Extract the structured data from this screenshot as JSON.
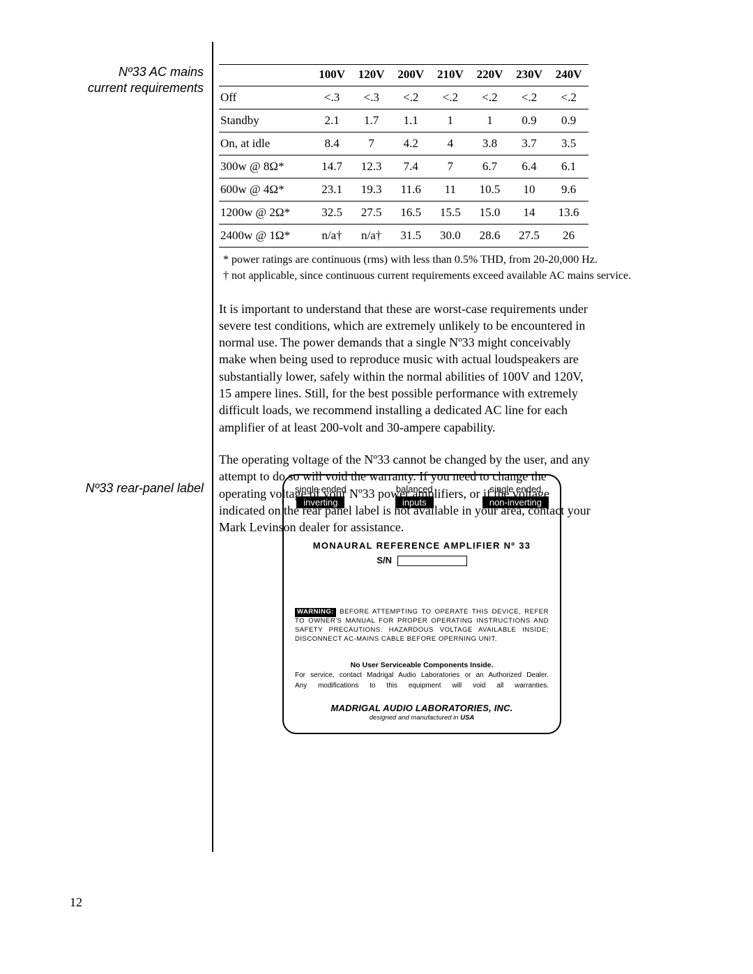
{
  "side": {
    "ac_mains": "Nº33 AC mains\ncurrent requirements",
    "rear_panel": "Nº33 rear-panel label"
  },
  "table": {
    "columns": [
      "100V",
      "120V",
      "200V",
      "210V",
      "220V",
      "230V",
      "240V"
    ],
    "rows": [
      {
        "label": "Off",
        "cells": [
          "<.3",
          "<.3",
          "<.2",
          "<.2",
          "<.2",
          "<.2",
          "<.2"
        ]
      },
      {
        "label": "Standby",
        "cells": [
          "2.1",
          "1.7",
          "1.1",
          "1",
          "1",
          "0.9",
          "0.9"
        ]
      },
      {
        "label": "On, at idle",
        "cells": [
          "8.4",
          "7",
          "4.2",
          "4",
          "3.8",
          "3.7",
          "3.5"
        ]
      },
      {
        "label": "300w @ 8Ω*",
        "cells": [
          "14.7",
          "12.3",
          "7.4",
          "7",
          "6.7",
          "6.4",
          "6.1"
        ]
      },
      {
        "label": "600w @ 4Ω*",
        "cells": [
          "23.1",
          "19.3",
          "11.6",
          "11",
          "10.5",
          "10",
          "9.6"
        ]
      },
      {
        "label": "1200w @ 2Ω*",
        "cells": [
          "32.5",
          "27.5",
          "16.5",
          "15.5",
          "15.0",
          "14",
          "13.6"
        ]
      },
      {
        "label": "2400w @ 1Ω*",
        "cells": [
          "n/a†",
          "n/a†",
          "31.5",
          "30.0",
          "28.6",
          "27.5",
          "26"
        ]
      }
    ]
  },
  "footnotes": {
    "star": "* power ratings are continuous (rms) with less than 0.5% THD, from 20-20,000 Hz.",
    "dagger": "† not applicable, since continuous current requirements exceed available AC mains service."
  },
  "paras": {
    "p1": "It is important to understand that these are worst-case requirements under severe test conditions, which are extremely unlikely to be encountered in normal use. The power demands that a single Nº33 might conceivably make when being used to reproduce music with actual loudspeakers are substantially lower, safely within the normal abilities of 100V and 120V, 15 ampere lines. Still, for the best possible performance with extremely difficult loads, we recommend installing a dedicated AC line for each amplifier of at least 200-volt and 30-ampere capability.",
    "p2": "The operating voltage of the Nº33 cannot be changed by the user, and any attempt to do so will void the warranty. If you need to change the operating voltage of your Nº33 power amplifiers, or if the voltage indicated on the rear panel label is not available in your area, contact your Mark Levinson dealer for assistance."
  },
  "rear": {
    "left_top": "single ended",
    "left_bot": "inverting",
    "mid_top": "balanced",
    "mid_bot": "inputs",
    "right_top": "single ended",
    "right_bot": "non-inverting",
    "model": "MONAURAL REFERENCE AMPLIFIER Nº 33",
    "sn_label": "S/N",
    "warning_label": "WARNING:",
    "warning_text": "BEFORE ATTEMPTING TO OPERATE THIS DEVICE, REFER TO OWNER'S MANUAL FOR PROPER OPERATING INSTRUCTIONS AND SAFETY PRECAUTIONS. HAZARDOUS VOLTAGE AVAILABLE INSIDE; DISCONNECT AC-MAINS CABLE BEFORE OPERNING UNIT.",
    "nouser": "No User Serviceable Components Inside.",
    "svc1": "For service, contact Madrigal Audio Laboratories or an Authorized Dealer.",
    "svc2": "Any modifications to this equipment will void all warranties.",
    "company": "MADRIGAL AUDIO LABORATORIES, INC.",
    "designed_prefix": "designed and manufactured in ",
    "designed_bold": "USA"
  },
  "page_number": "12"
}
